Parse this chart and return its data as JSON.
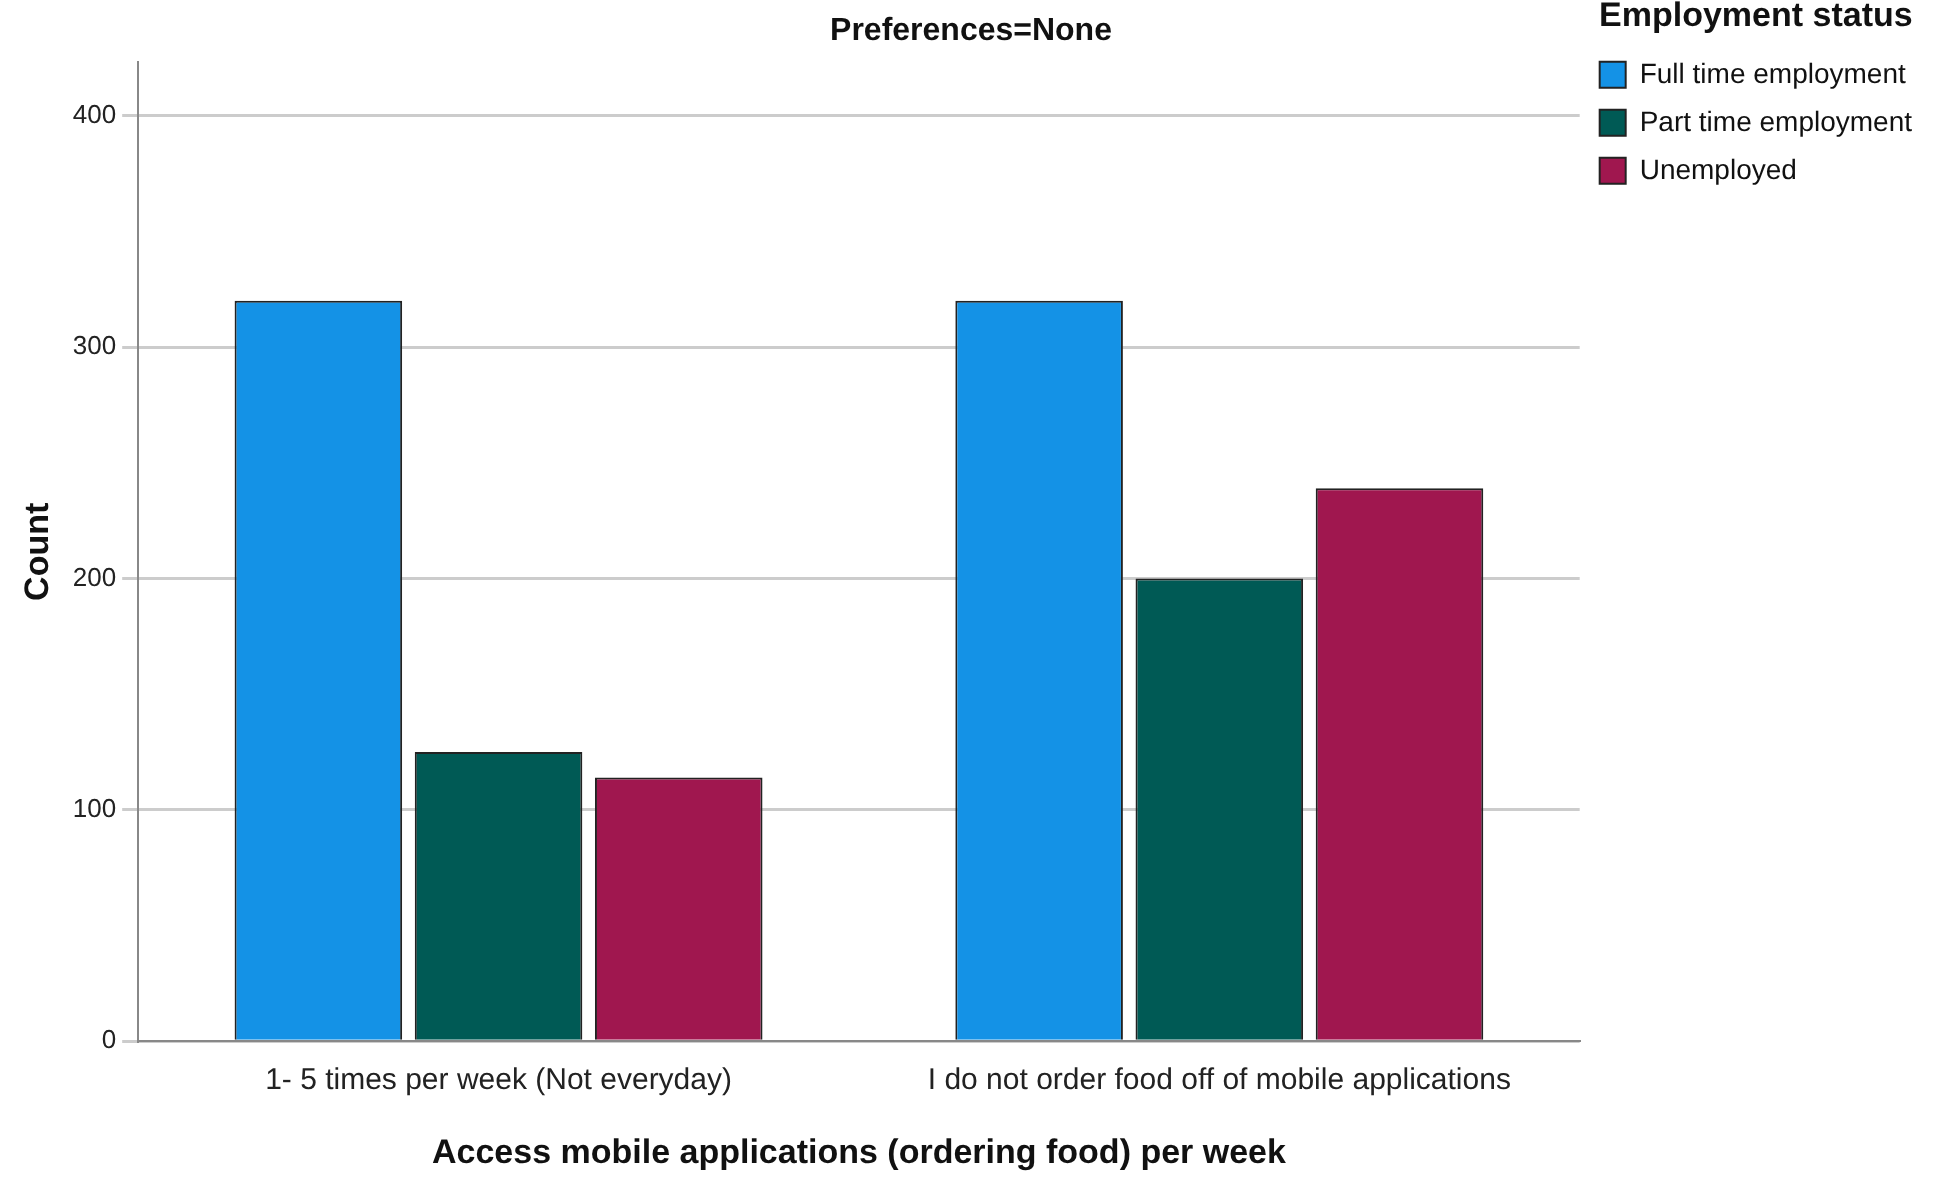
{
  "chart_data": {
    "type": "bar",
    "title": "Preferences=None",
    "xlabel": "Access mobile applications (ordering food) per week",
    "ylabel": "Count",
    "categories": [
      "1- 5 times per week (Not everyday)",
      "I do not order food off of mobile applications"
    ],
    "series": [
      {
        "name": "Full time employment",
        "color": "#1492e6",
        "values": [
          320,
          320
        ]
      },
      {
        "name": "Part time employment",
        "color": "#005a55",
        "values": [
          125,
          200
        ]
      },
      {
        "name": "Unemployed",
        "color": "#a0174f",
        "values": [
          114,
          239
        ]
      }
    ],
    "legend_title": "Employment status",
    "legend": "right",
    "ylim": [
      0,
      423
    ],
    "yticks": [
      0,
      100,
      200,
      300,
      400
    ],
    "grid": "y"
  }
}
